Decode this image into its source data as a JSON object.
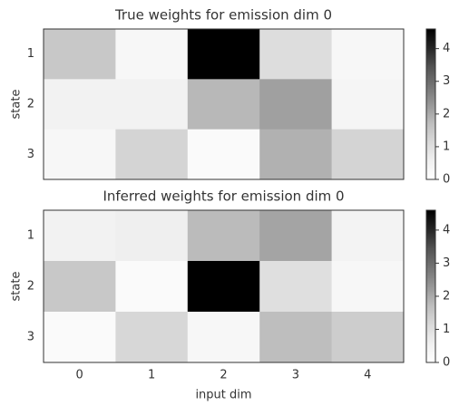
{
  "chart_data": [
    {
      "type": "heatmap",
      "title": "True weights for emission dim 0",
      "ylabel": "state",
      "rows": [
        "1",
        "2",
        "3"
      ],
      "values": [
        [
          1.5,
          0.3,
          4.6,
          1.05,
          0.3
        ],
        [
          0.5,
          0.5,
          1.8,
          2.15,
          0.4
        ],
        [
          0.3,
          1.25,
          0.2,
          1.9,
          1.25
        ]
      ],
      "colormap": "Greys",
      "clim": [
        0,
        4.6
      ],
      "cticks": [
        0,
        1,
        2,
        3,
        4
      ]
    },
    {
      "type": "heatmap",
      "title": "Inferred weights for emission dim 0",
      "ylabel": "state",
      "xlabel": "input dim",
      "rows": [
        "1",
        "2",
        "3"
      ],
      "xticks": [
        0,
        1,
        2,
        3,
        4
      ],
      "values": [
        [
          0.5,
          0.6,
          1.75,
          2.1,
          0.45
        ],
        [
          1.5,
          0.2,
          4.6,
          1.0,
          0.3
        ],
        [
          0.2,
          1.2,
          0.3,
          1.7,
          1.4
        ]
      ],
      "colormap": "Greys",
      "clim": [
        0,
        4.6
      ],
      "cticks": [
        0,
        1,
        2,
        3,
        4
      ]
    }
  ]
}
